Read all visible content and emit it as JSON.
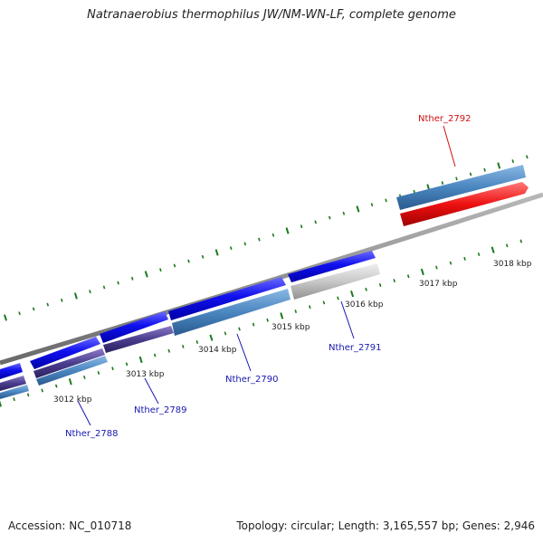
{
  "title": "Natranaerobius thermophilus JW/NM-WN-LF, complete genome",
  "footer": {
    "accession": "Accession: NC_010718",
    "summary": "Topology: circular; Length: 3,165,557 bp; Genes: 2,946"
  },
  "colors": {
    "backbone": "#8a8a8a",
    "forward_gene": "#1010ee",
    "cds_steel": "#4a86c0",
    "cds_purple": "#4b3d8e",
    "pseudo_grey": "#c8c8c8",
    "highlight": "#ee1111",
    "tick": "#1a7a1a",
    "label_blue": "#1818b0",
    "label_red": "#d01010"
  },
  "kbp_labels": [
    {
      "id": "kbp-3012",
      "text": "3012 kbp"
    },
    {
      "id": "kbp-3013",
      "text": "3013 kbp"
    },
    {
      "id": "kbp-3014",
      "text": "3014 kbp"
    },
    {
      "id": "kbp-3015",
      "text": "3015 kbp"
    },
    {
      "id": "kbp-3016",
      "text": "3016 kbp"
    },
    {
      "id": "kbp-3017",
      "text": "3017 kbp"
    },
    {
      "id": "kbp-3018",
      "text": "3018 kbp"
    }
  ],
  "gene_labels": [
    {
      "id": "nther-2788",
      "text": "Nther_2788",
      "color": "blue"
    },
    {
      "id": "nther-2789",
      "text": "Nther_2789",
      "color": "blue"
    },
    {
      "id": "nther-2790",
      "text": "Nther_2790",
      "color": "blue"
    },
    {
      "id": "nther-2791",
      "text": "Nther_2791",
      "color": "blue"
    },
    {
      "id": "nther-2792",
      "text": "Nther_2792",
      "color": "red"
    }
  ]
}
